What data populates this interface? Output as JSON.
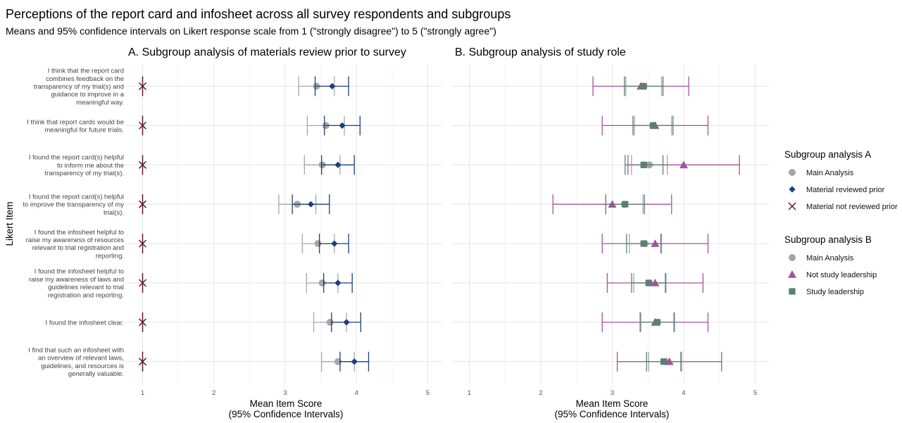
{
  "title": "Perceptions of the report card and infosheet across all survey respondents and subgroups",
  "subtitle": "Means and 95% confidence intervals on Likert response scale from 1 (\"strongly disagree\") to 5 (\"strongly agree\")",
  "y_axis_title": "Likert Item",
  "items": [
    [
      "I think that the report card",
      "combines feedback on the",
      "transparency of my trial(s) and",
      "guidance to improve in a",
      "meaningful way."
    ],
    [
      "I think that report cards would be",
      "meaningful for future trials."
    ],
    [
      "I found the report card(s) helpful",
      "to inform me about the",
      "transparency of my trial(s)."
    ],
    [
      "I found the report card(s) helpful",
      "to improve the transparency of my",
      "trial(s)."
    ],
    [
      "I found the infosheet helpful to",
      "raise my awareness of resources",
      "relevant to trial registration and",
      "reporting."
    ],
    [
      "I found the infosheet helpful to",
      "raise my awareness of laws and",
      "guidelines relevant to trial",
      "registration and reporting."
    ],
    [
      "I found the infosheet clear."
    ],
    [
      "I find that such an infosheet with",
      "an overview of relevant laws,",
      "guidelines, and resources is",
      "generally valuable."
    ]
  ],
  "legend_a": {
    "title": "Subgroup analysis A",
    "entries": [
      {
        "label": "Main Analysis",
        "shape": "circle",
        "color": "#a6a6a6"
      },
      {
        "label": "Material reviewed prior",
        "shape": "diamond",
        "color": "#1b3f7a"
      },
      {
        "label": "Material not reviewed prior",
        "shape": "cross",
        "color": "#5c1a33"
      }
    ]
  },
  "legend_b": {
    "title": "Subgroup analysis B",
    "entries": [
      {
        "label": "Main Analysis",
        "shape": "circle",
        "color": "#a6a6a6"
      },
      {
        "label": "Not study leadership",
        "shape": "triangle",
        "color": "#a3539a"
      },
      {
        "label": "Study leadership",
        "shape": "square",
        "color": "#5b7f74"
      }
    ]
  },
  "chart_data": [
    {
      "type": "scatter",
      "title": "A. Subgroup analysis of materials review prior to survey",
      "xlabel": [
        "Mean Item Score",
        "(95% Confidence Intervals)"
      ],
      "ylabel": "Likert Item",
      "xlim": [
        0.95,
        5.2
      ],
      "xticks": [
        1,
        2,
        3,
        4,
        5
      ],
      "grid": true,
      "series": [
        {
          "name": "Main Analysis",
          "shape": "circle",
          "color": "#a6a6a6",
          "mean": [
            3.44,
            3.57,
            3.52,
            3.17,
            3.46,
            3.52,
            3.63,
            3.74
          ],
          "lower": [
            3.19,
            3.31,
            3.27,
            2.91,
            3.24,
            3.3,
            3.4,
            3.51
          ],
          "upper": [
            3.69,
            3.83,
            3.77,
            3.43,
            3.69,
            3.74,
            3.86,
            3.97
          ]
        },
        {
          "name": "Material reviewed prior",
          "shape": "diamond",
          "color": "#1b3f7a",
          "mean": [
            3.66,
            3.8,
            3.74,
            3.36,
            3.69,
            3.74,
            3.86,
            3.97
          ],
          "lower": [
            3.42,
            3.55,
            3.51,
            3.1,
            3.48,
            3.54,
            3.65,
            3.77
          ],
          "upper": [
            3.89,
            4.05,
            3.97,
            3.62,
            3.89,
            3.94,
            4.06,
            4.17
          ]
        },
        {
          "name": "Material not reviewed prior",
          "shape": "cross",
          "color": "#5c1a33",
          "mean": [
            1,
            1,
            1,
            1,
            1,
            1,
            1,
            1
          ],
          "lower": [
            1,
            1,
            1,
            1,
            1,
            1,
            1,
            1
          ],
          "upper": [
            1,
            1,
            1,
            1,
            1,
            1,
            1,
            1
          ]
        }
      ]
    },
    {
      "type": "scatter",
      "title": "B. Subgroup analysis of study role",
      "xlabel": [
        "Mean Item Score",
        "(95% Confidence Intervals)"
      ],
      "xlim": [
        0.95,
        5.2
      ],
      "xticks": [
        1,
        2,
        3,
        4,
        5
      ],
      "grid": true,
      "series": [
        {
          "name": "Main Analysis",
          "shape": "circle",
          "color": "#a6a6a6",
          "mean": [
            3.44,
            3.57,
            3.52,
            3.17,
            3.46,
            3.52,
            3.63,
            3.74
          ],
          "lower": [
            3.19,
            3.31,
            3.27,
            2.91,
            3.24,
            3.3,
            3.4,
            3.51
          ],
          "upper": [
            3.69,
            3.83,
            3.77,
            3.43,
            3.69,
            3.74,
            3.86,
            3.97
          ]
        },
        {
          "name": "Not study leadership",
          "shape": "triangle",
          "color": "#a3539a",
          "mean": [
            3.4,
            3.6,
            4.0,
            3.0,
            3.6,
            3.6,
            3.6,
            3.8
          ],
          "lower": [
            2.73,
            2.86,
            3.22,
            2.17,
            2.86,
            2.93,
            2.86,
            3.07
          ],
          "upper": [
            4.07,
            4.34,
            4.78,
            3.83,
            4.34,
            4.27,
            4.34,
            4.53
          ]
        },
        {
          "name": "Study leadership",
          "shape": "square",
          "color": "#5b7f74",
          "mean": [
            3.44,
            3.57,
            3.44,
            3.18,
            3.44,
            3.51,
            3.63,
            3.72
          ],
          "lower": [
            3.17,
            3.29,
            3.18,
            2.91,
            3.2,
            3.27,
            3.39,
            3.48
          ],
          "upper": [
            3.71,
            3.85,
            3.71,
            3.45,
            3.68,
            3.75,
            3.87,
            3.96
          ]
        }
      ]
    }
  ]
}
